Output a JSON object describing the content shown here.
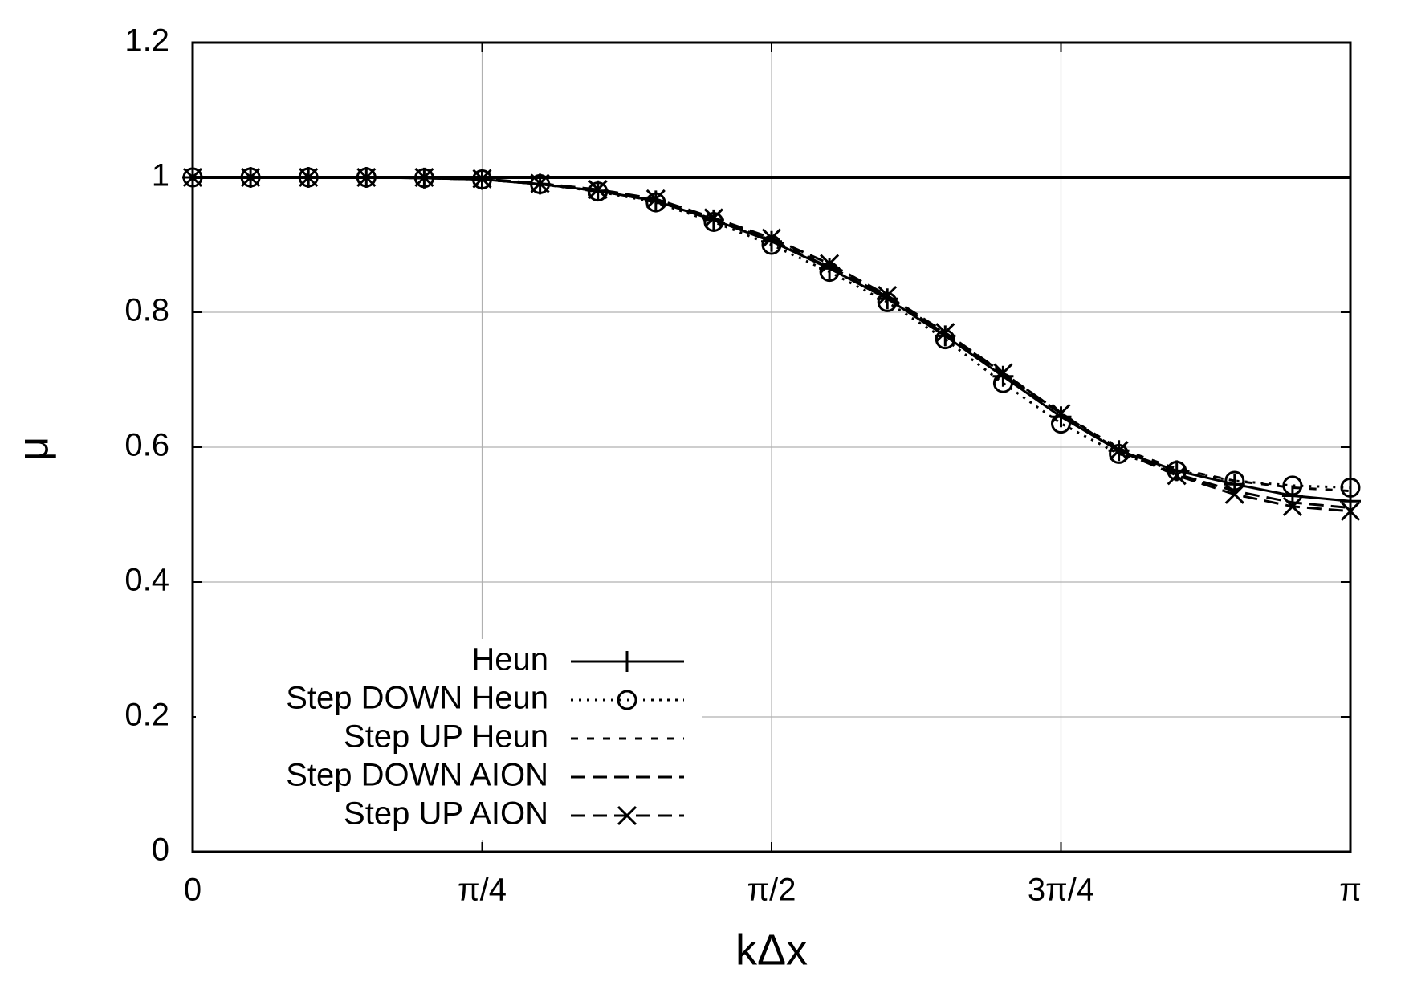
{
  "chart_data": {
    "type": "line",
    "xlabel": "kΔx",
    "ylabel": "μ",
    "x": [
      0,
      0.15708,
      0.31416,
      0.47124,
      0.62832,
      0.7854,
      0.94248,
      1.09956,
      1.25664,
      1.41372,
      1.5708,
      1.72788,
      1.88496,
      2.04204,
      2.19911,
      2.35619,
      2.51327,
      2.67035,
      2.82743,
      2.98451,
      3.14159
    ],
    "series": [
      {
        "name": "Heun",
        "color": "#000000",
        "dash": "solid",
        "marker": "plus",
        "values": [
          1,
          1,
          1,
          1,
          0.999,
          0.997,
          0.99,
          0.98,
          0.965,
          0.937,
          0.905,
          0.865,
          0.82,
          0.765,
          0.705,
          0.645,
          0.595,
          0.565,
          0.545,
          0.528,
          0.52
        ]
      },
      {
        "name": "Step DOWN Heun",
        "color": "#000000",
        "dash": "dotted",
        "marker": "circle",
        "values": [
          1,
          1,
          1,
          1,
          0.999,
          0.997,
          0.99,
          0.979,
          0.963,
          0.934,
          0.9,
          0.86,
          0.815,
          0.76,
          0.695,
          0.635,
          0.59,
          0.565,
          0.55,
          0.543,
          0.54
        ]
      },
      {
        "name": "Step UP Heun",
        "color": "#000000",
        "dash": "dashed",
        "marker": "none",
        "values": [
          1,
          1,
          1,
          1,
          0.999,
          0.997,
          0.99,
          0.98,
          0.966,
          0.938,
          0.907,
          0.868,
          0.823,
          0.768,
          0.71,
          0.65,
          0.598,
          0.568,
          0.55,
          0.54,
          0.535
        ]
      },
      {
        "name": "Step DOWN AION",
        "color": "#000000",
        "dash": "long-dashed",
        "marker": "none",
        "values": [
          1,
          1,
          1,
          1,
          0.999,
          0.997,
          0.99,
          0.98,
          0.965,
          0.938,
          0.906,
          0.867,
          0.822,
          0.767,
          0.707,
          0.65,
          0.595,
          0.56,
          0.535,
          0.518,
          0.51
        ]
      },
      {
        "name": "Step UP AION",
        "color": "#000000",
        "dash": "long-dashed",
        "marker": "cross",
        "values": [
          1,
          1,
          1,
          1,
          1,
          0.998,
          0.991,
          0.982,
          0.968,
          0.94,
          0.91,
          0.872,
          0.825,
          0.77,
          0.71,
          0.65,
          0.595,
          0.558,
          0.53,
          0.512,
          0.505
        ]
      }
    ],
    "hlines": [
      1
    ],
    "xlim": [
      0,
      3.14159
    ],
    "ylim": [
      0,
      1.2
    ],
    "xticks": [
      0,
      {
        "value": 0.7854,
        "label": "π/4"
      },
      {
        "value": 1.5708,
        "label": "π/2"
      },
      {
        "value": 2.35619,
        "label": "3π/4"
      },
      {
        "value": 3.14159,
        "label": "π"
      }
    ],
    "yticks": [
      0,
      0.2,
      0.4,
      0.6,
      0.8,
      1,
      1.2
    ],
    "grid": true,
    "legend": "lower-left"
  }
}
